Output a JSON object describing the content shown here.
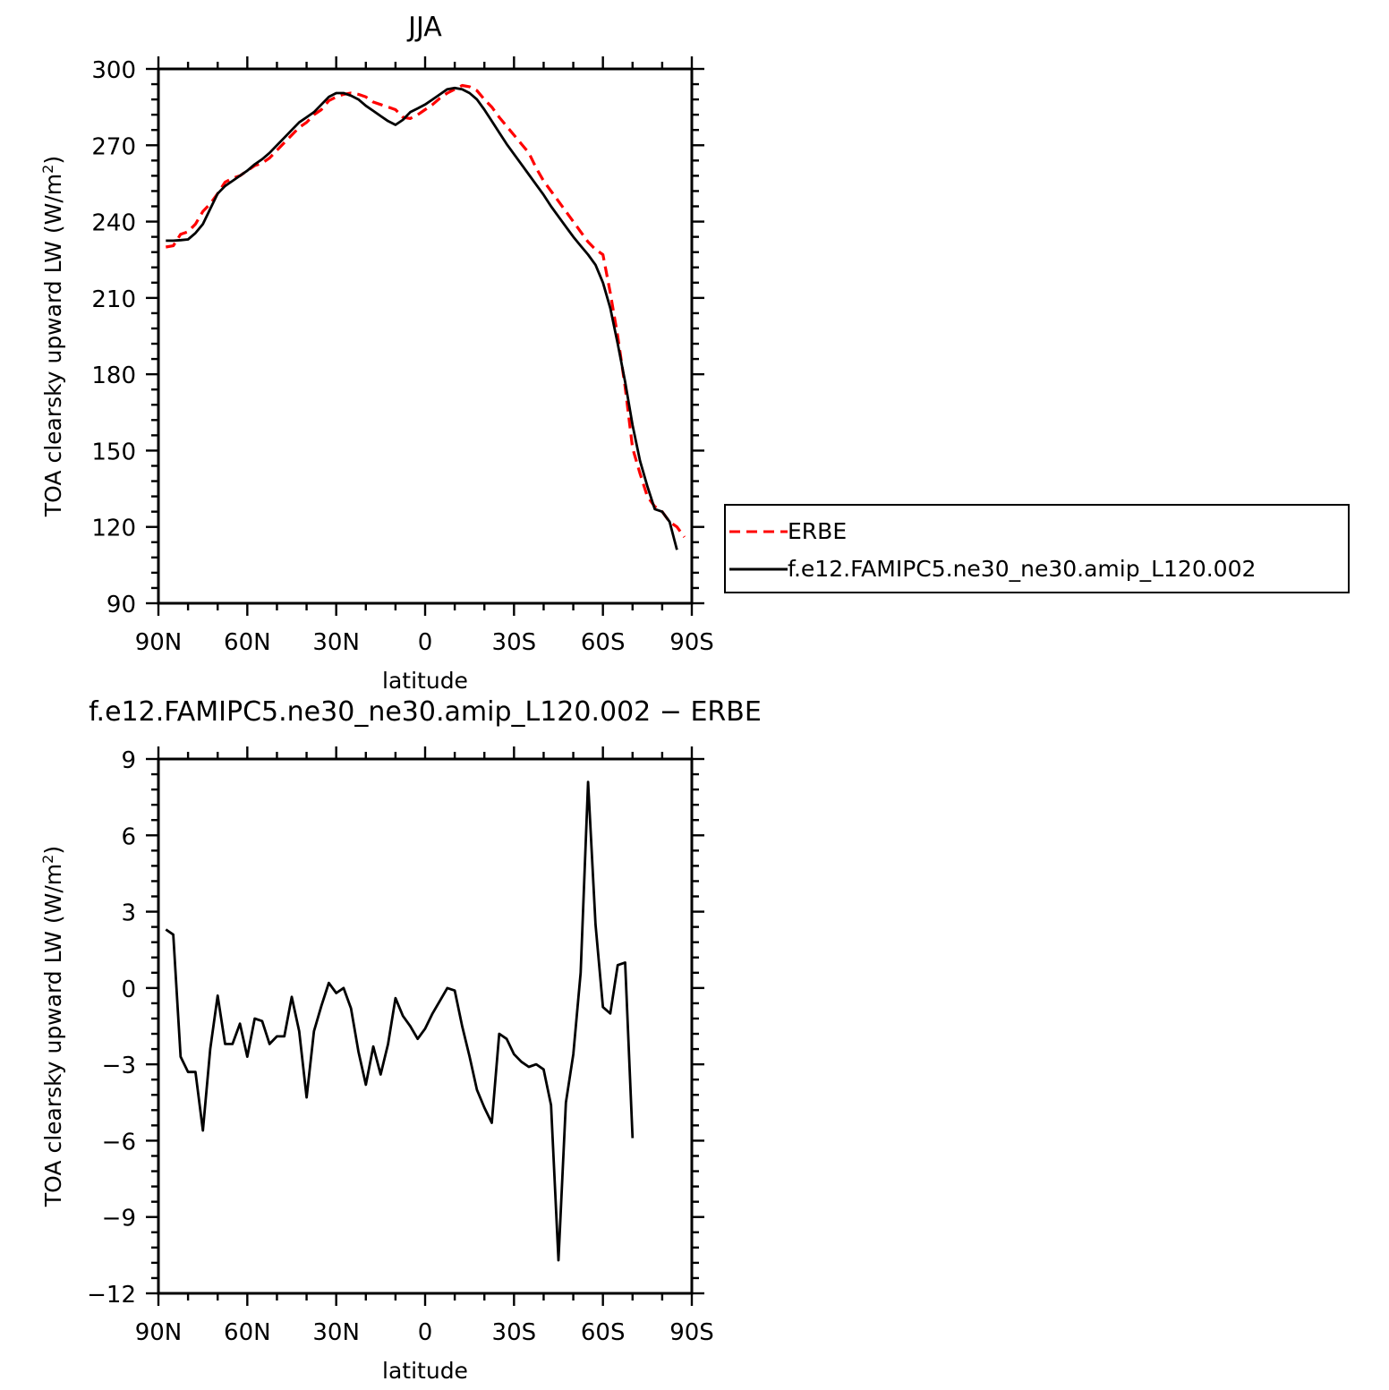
{
  "chart_data": [
    {
      "type": "line",
      "title": "JJA",
      "xlabel": "latitude",
      "ylabel": "TOA clearsky upward LW (W/m²)",
      "xlim": [
        90,
        -90
      ],
      "ylim": [
        90,
        300
      ],
      "x_ticks": [
        90,
        60,
        30,
        0,
        -30,
        -60,
        -90
      ],
      "x_tick_labels": [
        "90N",
        "60N",
        "30N",
        "0",
        "30S",
        "60S",
        "90S"
      ],
      "y_ticks": [
        90,
        120,
        150,
        180,
        210,
        240,
        270,
        300
      ],
      "y_tick_labels": [
        "90",
        "120",
        "150",
        "180",
        "210",
        "240",
        "270",
        "300"
      ],
      "legend_position": "right",
      "series": [
        {
          "name": "ERBE",
          "color": "#ff0000",
          "style": "dashed",
          "points": [
            [
              87.5,
              230
            ],
            [
              85,
              230.5
            ],
            [
              82.5,
              235
            ],
            [
              80,
              236
            ],
            [
              77.5,
              239
            ],
            [
              75,
              244
            ],
            [
              72.5,
              247
            ],
            [
              70,
              251
            ],
            [
              67.5,
              255.5
            ],
            [
              65,
              257
            ],
            [
              62.5,
              258
            ],
            [
              60,
              260
            ],
            [
              57.5,
              262
            ],
            [
              55,
              263
            ],
            [
              52.5,
              265
            ],
            [
              50,
              268
            ],
            [
              47.5,
              271
            ],
            [
              45,
              274
            ],
            [
              42.5,
              277
            ],
            [
              40,
              279
            ],
            [
              37.5,
              282
            ],
            [
              35,
              284
            ],
            [
              32.5,
              287.5
            ],
            [
              30,
              289
            ],
            [
              27.5,
              290
            ],
            [
              25,
              290.5
            ],
            [
              22.5,
              290
            ],
            [
              20,
              289
            ],
            [
              17.5,
              287
            ],
            [
              15,
              286
            ],
            [
              12.5,
              285
            ],
            [
              10,
              284
            ],
            [
              7.5,
              281
            ],
            [
              5,
              280.5
            ],
            [
              2.5,
              282
            ],
            [
              0,
              284
            ],
            [
              -2.5,
              286
            ],
            [
              -5,
              288.5
            ],
            [
              -7.5,
              290.5
            ],
            [
              -10,
              292
            ],
            [
              -12.5,
              293.5
            ],
            [
              -15,
              293
            ],
            [
              -17.5,
              291.5
            ],
            [
              -20,
              288
            ],
            [
              -22.5,
              285
            ],
            [
              -25,
              281
            ],
            [
              -27.5,
              277.5
            ],
            [
              -30,
              274
            ],
            [
              -32.5,
              270.5
            ],
            [
              -35,
              267
            ],
            [
              -37.5,
              261
            ],
            [
              -40,
              256
            ],
            [
              -42.5,
              252
            ],
            [
              -45,
              248
            ],
            [
              -47.5,
              244
            ],
            [
              -50,
              240
            ],
            [
              -52.5,
              236
            ],
            [
              -55,
              232
            ],
            [
              -57.5,
              229
            ],
            [
              -60,
              227
            ],
            [
              -62.5,
              212
            ],
            [
              -65,
              195
            ],
            [
              -67.5,
              175
            ],
            [
              -70,
              151
            ],
            [
              -72.5,
              141
            ],
            [
              -75,
              132
            ],
            [
              -77.5,
              128
            ],
            [
              -80,
              126
            ],
            [
              -82.5,
              122
            ],
            [
              -85,
              120
            ],
            [
              -87.5,
              116
            ]
          ]
        },
        {
          "name": "f.e12.FAMIPC5.ne30_ne30.amip_L120.002",
          "color": "#000000",
          "style": "solid",
          "points": [
            [
              87.5,
              232.5
            ],
            [
              85,
              232.5
            ],
            [
              82.5,
              232.7
            ],
            [
              80,
              233
            ],
            [
              77.5,
              235.5
            ],
            [
              75,
              239
            ],
            [
              72.5,
              245
            ],
            [
              70,
              251
            ],
            [
              67.5,
              254
            ],
            [
              65,
              256
            ],
            [
              62.5,
              258
            ],
            [
              60,
              260
            ],
            [
              57.5,
              262.5
            ],
            [
              55,
              264.5
            ],
            [
              52.5,
              267
            ],
            [
              50,
              270
            ],
            [
              47.5,
              273
            ],
            [
              45,
              276
            ],
            [
              42.5,
              279
            ],
            [
              40,
              281
            ],
            [
              37.5,
              283
            ],
            [
              35,
              286
            ],
            [
              32.5,
              289
            ],
            [
              30,
              290.5
            ],
            [
              27.5,
              290.5
            ],
            [
              25,
              289.5
            ],
            [
              22.5,
              288
            ],
            [
              20,
              285.5
            ],
            [
              17.5,
              283.5
            ],
            [
              15,
              281.5
            ],
            [
              12.5,
              279.5
            ],
            [
              10,
              278
            ],
            [
              7.5,
              280
            ],
            [
              5,
              283
            ],
            [
              2.5,
              284.5
            ],
            [
              0,
              286
            ],
            [
              -2.5,
              288
            ],
            [
              -5,
              290
            ],
            [
              -7.5,
              292
            ],
            [
              -10,
              292.5
            ],
            [
              -12.5,
              292
            ],
            [
              -15,
              290.5
            ],
            [
              -17.5,
              288
            ],
            [
              -20,
              284
            ],
            [
              -22.5,
              279.5
            ],
            [
              -25,
              275
            ],
            [
              -27.5,
              270.5
            ],
            [
              -30,
              266.5
            ],
            [
              -32.5,
              262.5
            ],
            [
              -35,
              258.5
            ],
            [
              -37.5,
              254.5
            ],
            [
              -40,
              250.5
            ],
            [
              -42.5,
              246
            ],
            [
              -45,
              242
            ],
            [
              -47.5,
              238
            ],
            [
              -50,
              234
            ],
            [
              -52.5,
              230.5
            ],
            [
              -55,
              227
            ],
            [
              -57.5,
              223
            ],
            [
              -60,
              216
            ],
            [
              -62.5,
              206
            ],
            [
              -65,
              192
            ],
            [
              -67.5,
              177
            ],
            [
              -70,
              160
            ],
            [
              -72.5,
              146
            ],
            [
              -75,
              136
            ],
            [
              -77.5,
              127
            ],
            [
              -80,
              126
            ],
            [
              -82.5,
              122
            ],
            [
              -85,
              111
            ]
          ]
        }
      ]
    },
    {
      "type": "line",
      "title": "f.e12.FAMIPC5.ne30_ne30.amip_L120.002 − ERBE",
      "xlabel": "latitude",
      "ylabel": "TOA clearsky upward LW (W/m²)",
      "xlim": [
        90,
        -90
      ],
      "ylim": [
        -12,
        9
      ],
      "x_ticks": [
        90,
        60,
        30,
        0,
        -30,
        -60,
        -90
      ],
      "x_tick_labels": [
        "90N",
        "60N",
        "30N",
        "0",
        "30S",
        "60S",
        "90S"
      ],
      "y_ticks": [
        -12,
        -9,
        -6,
        -3,
        0,
        3,
        6,
        9
      ],
      "y_tick_labels": [
        "−12",
        "−9",
        "−6",
        "−3",
        "0",
        "3",
        "6",
        "9"
      ],
      "series": [
        {
          "color": "#000000",
          "style": "solid",
          "points": [
            [
              87.5,
              2.3
            ],
            [
              85,
              2.1
            ],
            [
              82.5,
              -2.7
            ],
            [
              80,
              -3.3
            ],
            [
              77.5,
              -3.3
            ],
            [
              75,
              -5.6
            ],
            [
              72.5,
              -2.4
            ],
            [
              70,
              -0.3
            ],
            [
              67.5,
              -2.2
            ],
            [
              65,
              -2.2
            ],
            [
              62.5,
              -1.4
            ],
            [
              60,
              -2.7
            ],
            [
              57.5,
              -1.2
            ],
            [
              55,
              -1.3
            ],
            [
              52.5,
              -2.2
            ],
            [
              50,
              -1.9
            ],
            [
              47.5,
              -1.9
            ],
            [
              45,
              -0.35
            ],
            [
              42.5,
              -1.7
            ],
            [
              40,
              -4.3
            ],
            [
              37.5,
              -1.7
            ],
            [
              35,
              -0.7
            ],
            [
              32.5,
              0.2
            ],
            [
              30,
              -0.2
            ],
            [
              27.5,
              0
            ],
            [
              25,
              -0.8
            ],
            [
              22.5,
              -2.5
            ],
            [
              20,
              -3.8
            ],
            [
              17.5,
              -2.3
            ],
            [
              15,
              -3.4
            ],
            [
              12.5,
              -2.2
            ],
            [
              10,
              -0.4
            ],
            [
              7.5,
              -1.1
            ],
            [
              5,
              -1.5
            ],
            [
              2.5,
              -2
            ],
            [
              0,
              -1.6
            ],
            [
              -2.5,
              -1
            ],
            [
              -5,
              -0.5
            ],
            [
              -7.5,
              0
            ],
            [
              -10,
              -0.1
            ],
            [
              -12.5,
              -1.5
            ],
            [
              -15,
              -2.7
            ],
            [
              -17.5,
              -4
            ],
            [
              -20,
              -4.7
            ],
            [
              -22.5,
              -5.3
            ],
            [
              -25,
              -1.8
            ],
            [
              -27.5,
              -2
            ],
            [
              -30,
              -2.6
            ],
            [
              -32.5,
              -2.9
            ],
            [
              -35,
              -3.1
            ],
            [
              -37.5,
              -3
            ],
            [
              -40,
              -3.2
            ],
            [
              -42.5,
              -4.6
            ],
            [
              -45,
              -10.7
            ],
            [
              -47.5,
              -4.5
            ],
            [
              -50,
              -2.6
            ],
            [
              -52.5,
              0.6
            ],
            [
              -55,
              8.1
            ],
            [
              -57.5,
              2.5
            ],
            [
              -60,
              -0.75
            ],
            [
              -62.5,
              -1
            ],
            [
              -65,
              0.9
            ],
            [
              -67.5,
              1
            ],
            [
              -70,
              -5.9
            ]
          ]
        }
      ]
    }
  ]
}
